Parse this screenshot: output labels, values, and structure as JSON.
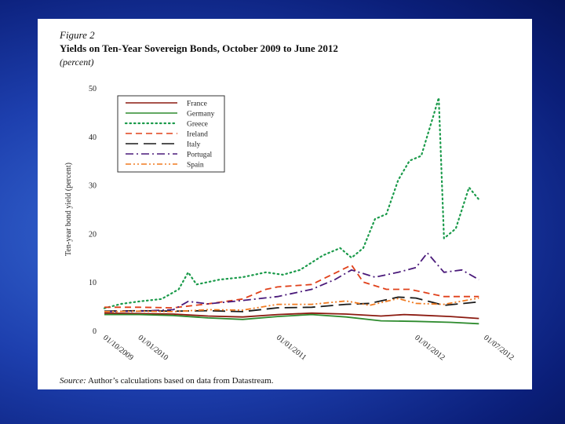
{
  "figure": {
    "label": "Figure 2",
    "title": "Yields on Ten-Year Sovereign Bonds, October 2009 to June 2012",
    "subtitle": "(percent)",
    "source_lead": "Source:",
    "source_text": " Author’s calculations based on data from Datastream."
  },
  "chart_data": {
    "type": "line",
    "title": "Yields on Ten-Year Sovereign Bonds, October 2009 to June 2012",
    "ylabel": "Ten-year bond yield (percent)",
    "xlabel": "",
    "ylim": [
      0,
      50
    ],
    "yticks": [
      0,
      10,
      20,
      30,
      40,
      50
    ],
    "xlim": [
      "2009-10-01",
      "2012-07-01"
    ],
    "xticks": [
      {
        "date": "2009-10-01",
        "label": "01/10/2009"
      },
      {
        "date": "2010-01-01",
        "label": "01/01/2010"
      },
      {
        "date": "2011-01-01",
        "label": "01/01/2011"
      },
      {
        "date": "2012-01-01",
        "label": "01/01/2012"
      },
      {
        "date": "2012-07-01",
        "label": "01/07/2012"
      }
    ],
    "grid": false,
    "legend_position": "top-left",
    "series": [
      {
        "name": "France",
        "color": "#8b1a10",
        "style": "solid",
        "x": [
          "2009-10-01",
          "2010-01-01",
          "2010-04-01",
          "2010-07-01",
          "2010-10-01",
          "2011-01-01",
          "2011-04-01",
          "2011-07-01",
          "2011-10-01",
          "2011-12-01",
          "2012-01-01",
          "2012-04-01",
          "2012-06-15"
        ],
        "y": [
          3.6,
          3.5,
          3.4,
          3.0,
          2.8,
          3.3,
          3.6,
          3.4,
          3.0,
          3.3,
          3.2,
          2.9,
          2.5
        ]
      },
      {
        "name": "Germany",
        "color": "#2e8b2e",
        "style": "solid",
        "x": [
          "2009-10-01",
          "2010-01-01",
          "2010-04-01",
          "2010-07-01",
          "2010-10-01",
          "2011-01-01",
          "2011-04-01",
          "2011-07-01",
          "2011-10-01",
          "2012-01-01",
          "2012-04-01",
          "2012-06-15"
        ],
        "y": [
          3.3,
          3.3,
          3.1,
          2.6,
          2.3,
          2.9,
          3.3,
          2.8,
          2.0,
          1.9,
          1.7,
          1.4
        ]
      },
      {
        "name": "Greece",
        "color": "#1a9a4a",
        "style": "dotted",
        "x": [
          "2009-10-01",
          "2009-11-15",
          "2010-01-01",
          "2010-03-01",
          "2010-04-15",
          "2010-05-10",
          "2010-06-01",
          "2010-08-01",
          "2010-10-01",
          "2010-12-01",
          "2011-01-15",
          "2011-03-01",
          "2011-05-01",
          "2011-06-15",
          "2011-07-15",
          "2011-08-15",
          "2011-09-15",
          "2011-10-15",
          "2011-11-15",
          "2011-12-15",
          "2012-01-15",
          "2012-02-15",
          "2012-03-01",
          "2012-03-15",
          "2012-04-15",
          "2012-05-20",
          "2012-06-15"
        ],
        "y": [
          4.6,
          5.5,
          6.0,
          6.5,
          8.5,
          12.0,
          9.5,
          10.5,
          11.0,
          12.0,
          11.5,
          12.5,
          15.5,
          17.0,
          15.0,
          17.0,
          23.0,
          24.0,
          31.0,
          35.0,
          36.0,
          44.0,
          48.0,
          19.0,
          21.0,
          29.5,
          27.0
        ]
      },
      {
        "name": "Ireland",
        "color": "#e0401a",
        "style": "dashed",
        "x": [
          "2009-10-01",
          "2010-01-01",
          "2010-04-01",
          "2010-07-01",
          "2010-10-01",
          "2010-12-01",
          "2011-01-01",
          "2011-04-01",
          "2011-07-15",
          "2011-08-15",
          "2011-10-15",
          "2011-12-15",
          "2012-01-15",
          "2012-03-15",
          "2012-06-15"
        ],
        "y": [
          4.8,
          4.8,
          4.7,
          5.5,
          6.5,
          8.5,
          9.0,
          9.5,
          13.5,
          10.0,
          8.5,
          8.5,
          8.0,
          7.0,
          7.0
        ]
      },
      {
        "name": "Italy",
        "color": "#1a1a1a",
        "style": "long-dash",
        "x": [
          "2009-10-01",
          "2010-01-01",
          "2010-04-01",
          "2010-07-01",
          "2010-10-01",
          "2011-01-01",
          "2011-04-01",
          "2011-07-01",
          "2011-09-01",
          "2011-11-15",
          "2012-01-01",
          "2012-03-15",
          "2012-06-15"
        ],
        "y": [
          4.0,
          4.1,
          4.0,
          4.1,
          3.9,
          4.7,
          4.8,
          5.4,
          5.6,
          6.9,
          6.7,
          5.2,
          5.9
        ]
      },
      {
        "name": "Portugal",
        "color": "#4a1a7a",
        "style": "dash-dot",
        "x": [
          "2009-10-01",
          "2010-01-01",
          "2010-04-01",
          "2010-05-10",
          "2010-07-01",
          "2010-10-01",
          "2011-01-01",
          "2011-04-01",
          "2011-06-01",
          "2011-07-15",
          "2011-09-15",
          "2011-11-15",
          "2012-01-01",
          "2012-01-31",
          "2012-03-15",
          "2012-05-01",
          "2012-06-15"
        ],
        "y": [
          3.9,
          4.0,
          4.3,
          6.0,
          5.5,
          6.2,
          7.0,
          8.5,
          10.5,
          12.5,
          11.0,
          12.0,
          13.0,
          16.0,
          12.0,
          12.5,
          10.5
        ]
      },
      {
        "name": "Spain",
        "color": "#f07a20",
        "style": "dash-dot-dot",
        "x": [
          "2009-10-01",
          "2010-01-01",
          "2010-04-01",
          "2010-07-01",
          "2010-10-01",
          "2011-01-01",
          "2011-04-01",
          "2011-07-01",
          "2011-09-01",
          "2011-11-15",
          "2012-01-01",
          "2012-03-15",
          "2012-06-15"
        ],
        "y": [
          3.9,
          4.0,
          3.9,
          4.3,
          4.2,
          5.4,
          5.4,
          6.1,
          5.2,
          6.6,
          5.6,
          5.4,
          6.7
        ]
      }
    ]
  }
}
